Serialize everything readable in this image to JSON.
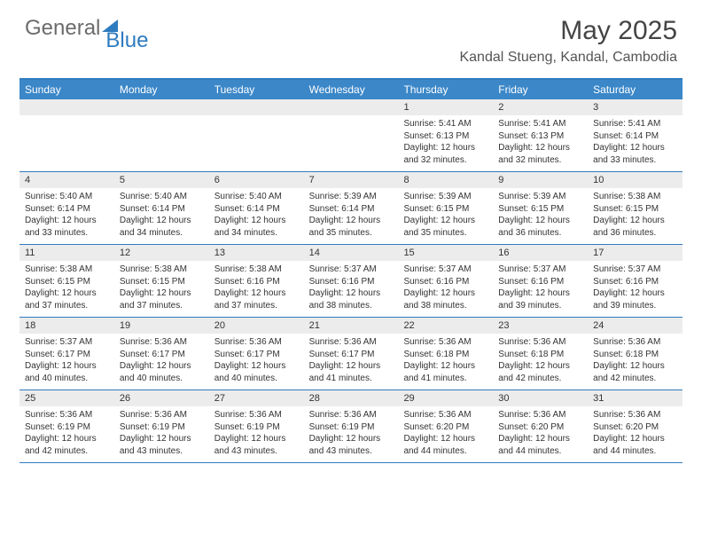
{
  "logo": {
    "text1": "General",
    "text2": "Blue"
  },
  "title": "May 2025",
  "location": "Kandal Stueng, Kandal, Cambodia",
  "colors": {
    "header_bg": "#3b87c8",
    "border": "#2f7bbf",
    "daynum_bg": "#ececec",
    "text": "#333333",
    "title_text": "#444444"
  },
  "day_names": [
    "Sunday",
    "Monday",
    "Tuesday",
    "Wednesday",
    "Thursday",
    "Friday",
    "Saturday"
  ],
  "weeks": [
    [
      {
        "n": "",
        "sr": "",
        "ss": "",
        "dl": ""
      },
      {
        "n": "",
        "sr": "",
        "ss": "",
        "dl": ""
      },
      {
        "n": "",
        "sr": "",
        "ss": "",
        "dl": ""
      },
      {
        "n": "",
        "sr": "",
        "ss": "",
        "dl": ""
      },
      {
        "n": "1",
        "sr": "Sunrise: 5:41 AM",
        "ss": "Sunset: 6:13 PM",
        "dl": "Daylight: 12 hours and 32 minutes."
      },
      {
        "n": "2",
        "sr": "Sunrise: 5:41 AM",
        "ss": "Sunset: 6:13 PM",
        "dl": "Daylight: 12 hours and 32 minutes."
      },
      {
        "n": "3",
        "sr": "Sunrise: 5:41 AM",
        "ss": "Sunset: 6:14 PM",
        "dl": "Daylight: 12 hours and 33 minutes."
      }
    ],
    [
      {
        "n": "4",
        "sr": "Sunrise: 5:40 AM",
        "ss": "Sunset: 6:14 PM",
        "dl": "Daylight: 12 hours and 33 minutes."
      },
      {
        "n": "5",
        "sr": "Sunrise: 5:40 AM",
        "ss": "Sunset: 6:14 PM",
        "dl": "Daylight: 12 hours and 34 minutes."
      },
      {
        "n": "6",
        "sr": "Sunrise: 5:40 AM",
        "ss": "Sunset: 6:14 PM",
        "dl": "Daylight: 12 hours and 34 minutes."
      },
      {
        "n": "7",
        "sr": "Sunrise: 5:39 AM",
        "ss": "Sunset: 6:14 PM",
        "dl": "Daylight: 12 hours and 35 minutes."
      },
      {
        "n": "8",
        "sr": "Sunrise: 5:39 AM",
        "ss": "Sunset: 6:15 PM",
        "dl": "Daylight: 12 hours and 35 minutes."
      },
      {
        "n": "9",
        "sr": "Sunrise: 5:39 AM",
        "ss": "Sunset: 6:15 PM",
        "dl": "Daylight: 12 hours and 36 minutes."
      },
      {
        "n": "10",
        "sr": "Sunrise: 5:38 AM",
        "ss": "Sunset: 6:15 PM",
        "dl": "Daylight: 12 hours and 36 minutes."
      }
    ],
    [
      {
        "n": "11",
        "sr": "Sunrise: 5:38 AM",
        "ss": "Sunset: 6:15 PM",
        "dl": "Daylight: 12 hours and 37 minutes."
      },
      {
        "n": "12",
        "sr": "Sunrise: 5:38 AM",
        "ss": "Sunset: 6:15 PM",
        "dl": "Daylight: 12 hours and 37 minutes."
      },
      {
        "n": "13",
        "sr": "Sunrise: 5:38 AM",
        "ss": "Sunset: 6:16 PM",
        "dl": "Daylight: 12 hours and 37 minutes."
      },
      {
        "n": "14",
        "sr": "Sunrise: 5:37 AM",
        "ss": "Sunset: 6:16 PM",
        "dl": "Daylight: 12 hours and 38 minutes."
      },
      {
        "n": "15",
        "sr": "Sunrise: 5:37 AM",
        "ss": "Sunset: 6:16 PM",
        "dl": "Daylight: 12 hours and 38 minutes."
      },
      {
        "n": "16",
        "sr": "Sunrise: 5:37 AM",
        "ss": "Sunset: 6:16 PM",
        "dl": "Daylight: 12 hours and 39 minutes."
      },
      {
        "n": "17",
        "sr": "Sunrise: 5:37 AM",
        "ss": "Sunset: 6:16 PM",
        "dl": "Daylight: 12 hours and 39 minutes."
      }
    ],
    [
      {
        "n": "18",
        "sr": "Sunrise: 5:37 AM",
        "ss": "Sunset: 6:17 PM",
        "dl": "Daylight: 12 hours and 40 minutes."
      },
      {
        "n": "19",
        "sr": "Sunrise: 5:36 AM",
        "ss": "Sunset: 6:17 PM",
        "dl": "Daylight: 12 hours and 40 minutes."
      },
      {
        "n": "20",
        "sr": "Sunrise: 5:36 AM",
        "ss": "Sunset: 6:17 PM",
        "dl": "Daylight: 12 hours and 40 minutes."
      },
      {
        "n": "21",
        "sr": "Sunrise: 5:36 AM",
        "ss": "Sunset: 6:17 PM",
        "dl": "Daylight: 12 hours and 41 minutes."
      },
      {
        "n": "22",
        "sr": "Sunrise: 5:36 AM",
        "ss": "Sunset: 6:18 PM",
        "dl": "Daylight: 12 hours and 41 minutes."
      },
      {
        "n": "23",
        "sr": "Sunrise: 5:36 AM",
        "ss": "Sunset: 6:18 PM",
        "dl": "Daylight: 12 hours and 42 minutes."
      },
      {
        "n": "24",
        "sr": "Sunrise: 5:36 AM",
        "ss": "Sunset: 6:18 PM",
        "dl": "Daylight: 12 hours and 42 minutes."
      }
    ],
    [
      {
        "n": "25",
        "sr": "Sunrise: 5:36 AM",
        "ss": "Sunset: 6:19 PM",
        "dl": "Daylight: 12 hours and 42 minutes."
      },
      {
        "n": "26",
        "sr": "Sunrise: 5:36 AM",
        "ss": "Sunset: 6:19 PM",
        "dl": "Daylight: 12 hours and 43 minutes."
      },
      {
        "n": "27",
        "sr": "Sunrise: 5:36 AM",
        "ss": "Sunset: 6:19 PM",
        "dl": "Daylight: 12 hours and 43 minutes."
      },
      {
        "n": "28",
        "sr": "Sunrise: 5:36 AM",
        "ss": "Sunset: 6:19 PM",
        "dl": "Daylight: 12 hours and 43 minutes."
      },
      {
        "n": "29",
        "sr": "Sunrise: 5:36 AM",
        "ss": "Sunset: 6:20 PM",
        "dl": "Daylight: 12 hours and 44 minutes."
      },
      {
        "n": "30",
        "sr": "Sunrise: 5:36 AM",
        "ss": "Sunset: 6:20 PM",
        "dl": "Daylight: 12 hours and 44 minutes."
      },
      {
        "n": "31",
        "sr": "Sunrise: 5:36 AM",
        "ss": "Sunset: 6:20 PM",
        "dl": "Daylight: 12 hours and 44 minutes."
      }
    ]
  ]
}
